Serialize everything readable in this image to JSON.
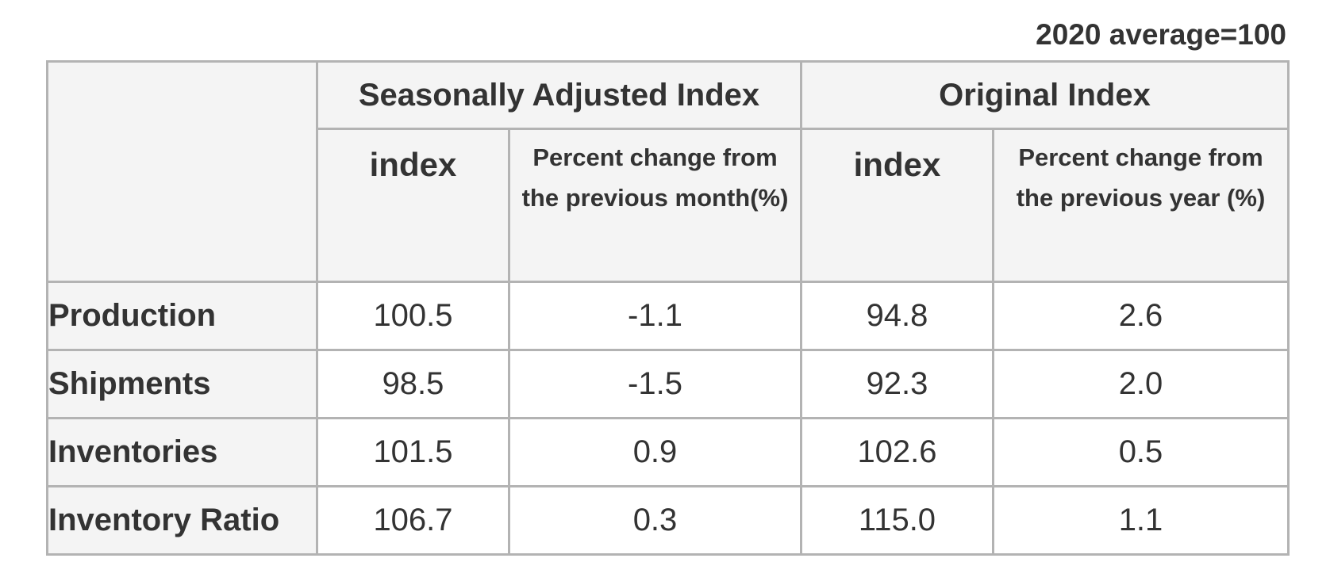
{
  "note": "2020 average=100",
  "table": {
    "group_headers": [
      "Seasonally Adjusted Index",
      "Original Index"
    ],
    "sub_headers": [
      "index",
      "Percent change from the previous month(%)",
      "index",
      "Percent change from the previous year (%)"
    ],
    "rows": [
      {
        "label": "Production",
        "values": [
          "100.5",
          "-1.1",
          "94.8",
          "2.6"
        ]
      },
      {
        "label": "Shipments",
        "values": [
          "98.5",
          "-1.5",
          "92.3",
          "2.0"
        ]
      },
      {
        "label": "Inventories",
        "values": [
          "101.5",
          "0.9",
          "102.6",
          "0.5"
        ]
      },
      {
        "label": "Inventory Ratio",
        "values": [
          "106.7",
          "0.3",
          "115.0",
          "1.1"
        ]
      }
    ]
  }
}
